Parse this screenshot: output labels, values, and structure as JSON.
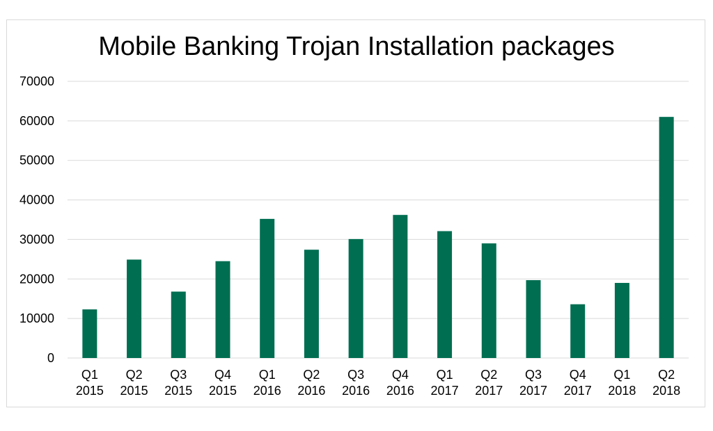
{
  "chart_data": {
    "type": "bar",
    "title": "Mobile Banking Trojan Installation packages",
    "xlabel": "",
    "ylabel": "",
    "categories": [
      [
        "Q1",
        "2015"
      ],
      [
        "Q2",
        "2015"
      ],
      [
        "Q3",
        "2015"
      ],
      [
        "Q4",
        "2015"
      ],
      [
        "Q1",
        "2016"
      ],
      [
        "Q2",
        "2016"
      ],
      [
        "Q3",
        "2016"
      ],
      [
        "Q4",
        "2016"
      ],
      [
        "Q1",
        "2017"
      ],
      [
        "Q2",
        "2017"
      ],
      [
        "Q3",
        "2017"
      ],
      [
        "Q4",
        "2017"
      ],
      [
        "Q1",
        "2018"
      ],
      [
        "Q2",
        "2018"
      ]
    ],
    "values": [
      12300,
      24900,
      16800,
      24500,
      35200,
      27400,
      30100,
      36200,
      32100,
      29000,
      19700,
      13600,
      19000,
      61000
    ],
    "ylim": [
      0,
      70000
    ],
    "yticks": [
      "0",
      "10000",
      "20000",
      "30000",
      "40000",
      "50000",
      "60000",
      "70000"
    ],
    "grid": true,
    "legend": "none",
    "bar_color": "#006e51",
    "grid_color": "#d9d9d9"
  }
}
